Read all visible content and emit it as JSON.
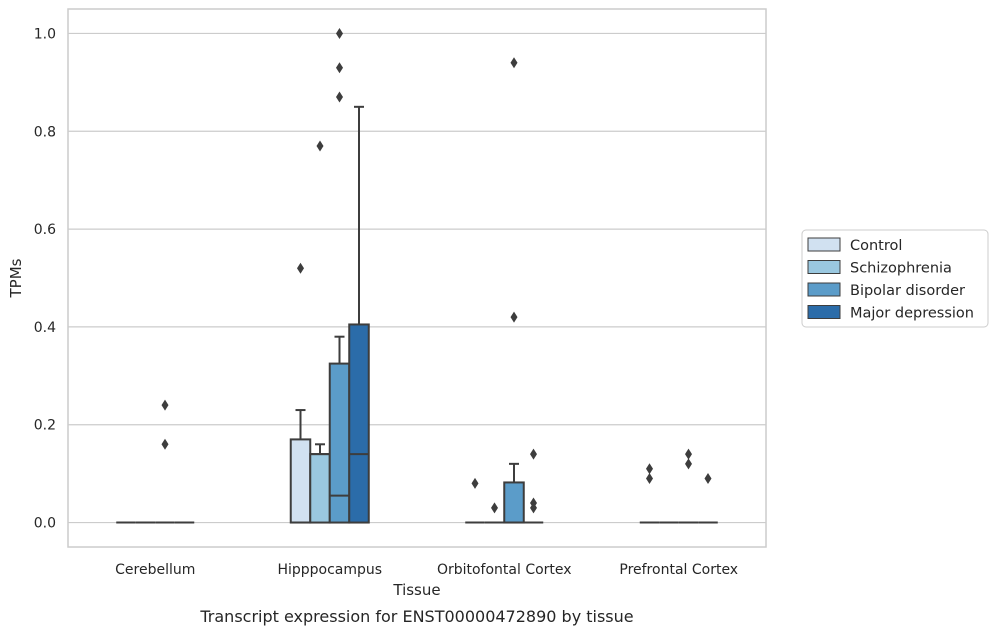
{
  "chart_data": {
    "type": "box",
    "ylabel": "TPMs",
    "xlabel": "Tissue",
    "caption": "Transcript expression for ENST00000472890 by tissue",
    "ylim": [
      -0.05,
      1.05
    ],
    "yticks": [
      0.0,
      0.2,
      0.4,
      0.6,
      0.8,
      1.0
    ],
    "ytick_labels": [
      "0.0",
      "0.2",
      "0.4",
      "0.6",
      "0.8",
      "1.0"
    ],
    "grid": "horizontal",
    "legend_position": "right",
    "categories": [
      "Cerebellum",
      "Hipppocampus",
      "Orbitofontal Cortex",
      "Prefrontal Cortex"
    ],
    "series": [
      {
        "name": "Control",
        "color": "#d1e1f1",
        "boxes": [
          {
            "category": "Cerebellum",
            "q1": 0,
            "median": 0,
            "q3": 0,
            "whisker_low": 0,
            "whisker_high": 0,
            "outliers": []
          },
          {
            "category": "Hipppocampus",
            "q1": 0,
            "median": 0,
            "q3": 0.17,
            "whisker_low": 0,
            "whisker_high": 0.23,
            "outliers": [
              0.52
            ]
          },
          {
            "category": "Orbitofontal Cortex",
            "q1": 0,
            "median": 0,
            "q3": 0,
            "whisker_low": 0,
            "whisker_high": 0,
            "outliers": [
              0.08
            ]
          },
          {
            "category": "Prefrontal Cortex",
            "q1": 0,
            "median": 0,
            "q3": 0,
            "whisker_low": 0,
            "whisker_high": 0,
            "outliers": [
              0.11,
              0.09
            ]
          }
        ]
      },
      {
        "name": "Schizophrenia",
        "color": "#9ac8e0",
        "boxes": [
          {
            "category": "Cerebellum",
            "q1": 0,
            "median": 0,
            "q3": 0,
            "whisker_low": 0,
            "whisker_high": 0,
            "outliers": []
          },
          {
            "category": "Hipppocampus",
            "q1": 0,
            "median": 0.14,
            "q3": 0.14,
            "whisker_low": 0,
            "whisker_high": 0.16,
            "outliers": [
              0.77
            ]
          },
          {
            "category": "Orbitofontal Cortex",
            "q1": 0,
            "median": 0,
            "q3": 0,
            "whisker_low": 0,
            "whisker_high": 0,
            "outliers": [
              0.03
            ]
          },
          {
            "category": "Prefrontal Cortex",
            "q1": 0,
            "median": 0,
            "q3": 0,
            "whisker_low": 0,
            "whisker_high": 0,
            "outliers": []
          }
        ]
      },
      {
        "name": "Bipolar disorder",
        "color": "#5b9cc9",
        "boxes": [
          {
            "category": "Cerebellum",
            "q1": 0,
            "median": 0,
            "q3": 0,
            "whisker_low": 0,
            "whisker_high": 0,
            "outliers": [
              0.24,
              0.16
            ]
          },
          {
            "category": "Hipppocampus",
            "q1": 0,
            "median": 0.055,
            "q3": 0.325,
            "whisker_low": 0,
            "whisker_high": 0.38,
            "outliers": [
              1.0,
              0.93,
              0.87
            ]
          },
          {
            "category": "Orbitofontal Cortex",
            "q1": 0,
            "median": 0,
            "q3": 0.082,
            "whisker_low": 0,
            "whisker_high": 0.12,
            "outliers": [
              0.94,
              0.42
            ]
          },
          {
            "category": "Prefrontal Cortex",
            "q1": 0,
            "median": 0,
            "q3": 0,
            "whisker_low": 0,
            "whisker_high": 0,
            "outliers": [
              0.14,
              0.12
            ]
          }
        ]
      },
      {
        "name": "Major depression",
        "color": "#2b6ca9",
        "boxes": [
          {
            "category": "Cerebellum",
            "q1": 0,
            "median": 0,
            "q3": 0,
            "whisker_low": 0,
            "whisker_high": 0,
            "outliers": []
          },
          {
            "category": "Hipppocampus",
            "q1": 0,
            "median": 0.14,
            "q3": 0.405,
            "whisker_low": 0,
            "whisker_high": 0.85,
            "outliers": []
          },
          {
            "category": "Orbitofontal Cortex",
            "q1": 0,
            "median": 0,
            "q3": 0,
            "whisker_low": 0,
            "whisker_high": 0,
            "outliers": [
              0.14,
              0.04,
              0.03
            ]
          },
          {
            "category": "Prefrontal Cortex",
            "q1": 0,
            "median": 0,
            "q3": 0,
            "whisker_low": 0,
            "whisker_high": 0,
            "outliers": [
              0.09
            ]
          }
        ]
      }
    ]
  }
}
